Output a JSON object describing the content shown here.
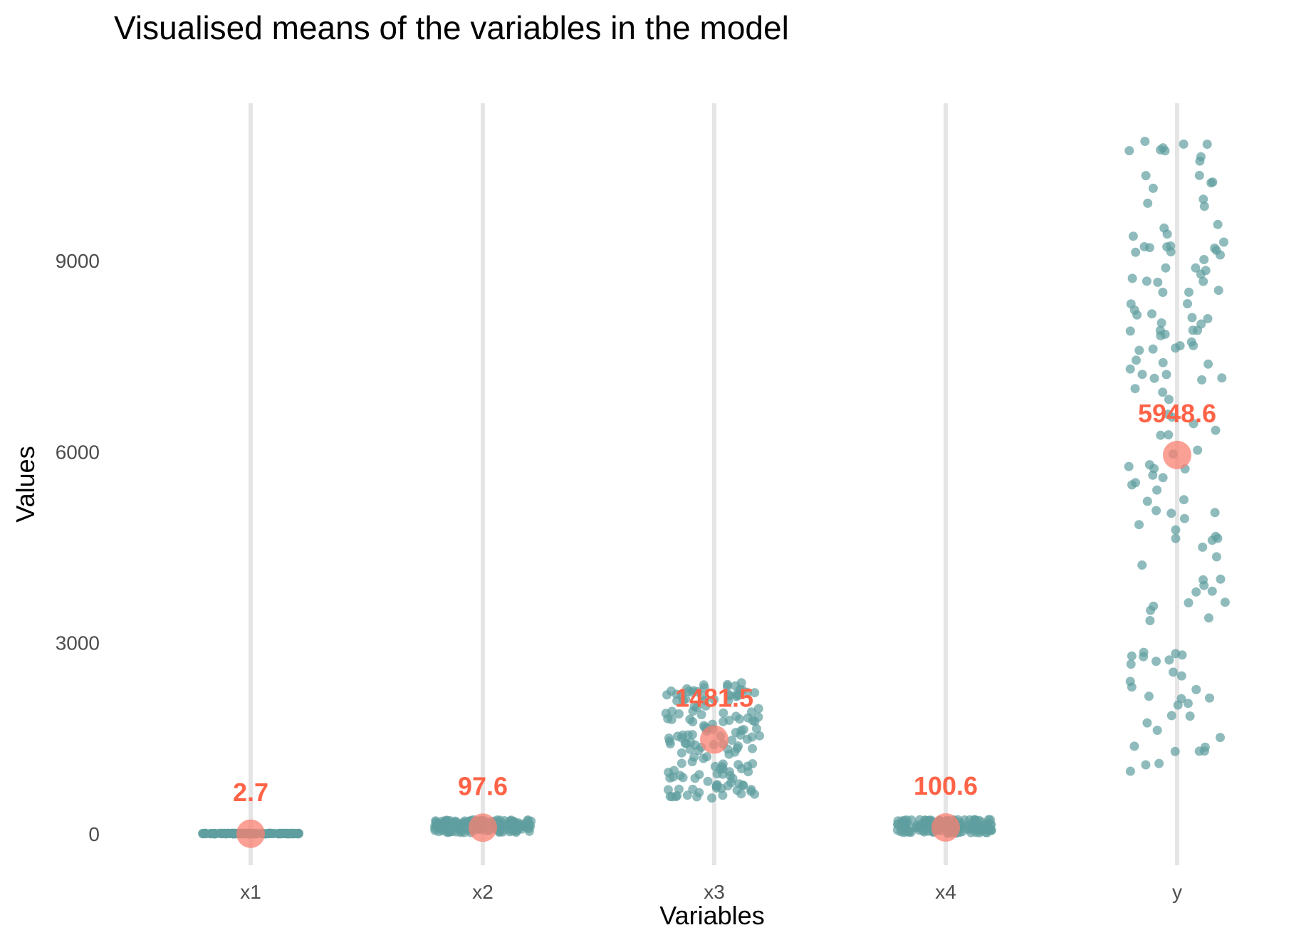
{
  "chart_data": {
    "type": "scatter",
    "title": "Visualised means of the variables in the model",
    "xlabel": "Variables",
    "ylabel": "Values",
    "categories": [
      "x1",
      "x2",
      "x3",
      "x4",
      "y"
    ],
    "y_ticks": [
      0,
      3000,
      6000,
      9000
    ],
    "ylim": [
      -550,
      11500
    ],
    "grid": "vertical major gridlines only",
    "means": [
      2.7,
      97.6,
      1481.5,
      100.6,
      5948.6
    ],
    "mean_labels": [
      "2.7",
      "97.6",
      "1481.5",
      "100.6",
      "5948.6"
    ],
    "point_ranges": [
      {
        "category": "x1",
        "min": 0,
        "max": 10
      },
      {
        "category": "x2",
        "min": 20,
        "max": 220
      },
      {
        "category": "x3",
        "min": 560,
        "max": 2380
      },
      {
        "category": "x4",
        "min": 10,
        "max": 230
      },
      {
        "category": "y",
        "min": 940,
        "max": 10880
      }
    ],
    "colors": {
      "points": "#5F9EA0",
      "mean_marker": "#FA8072",
      "mean_label": "#FF6347",
      "gridline": "#e5e5e5"
    }
  }
}
